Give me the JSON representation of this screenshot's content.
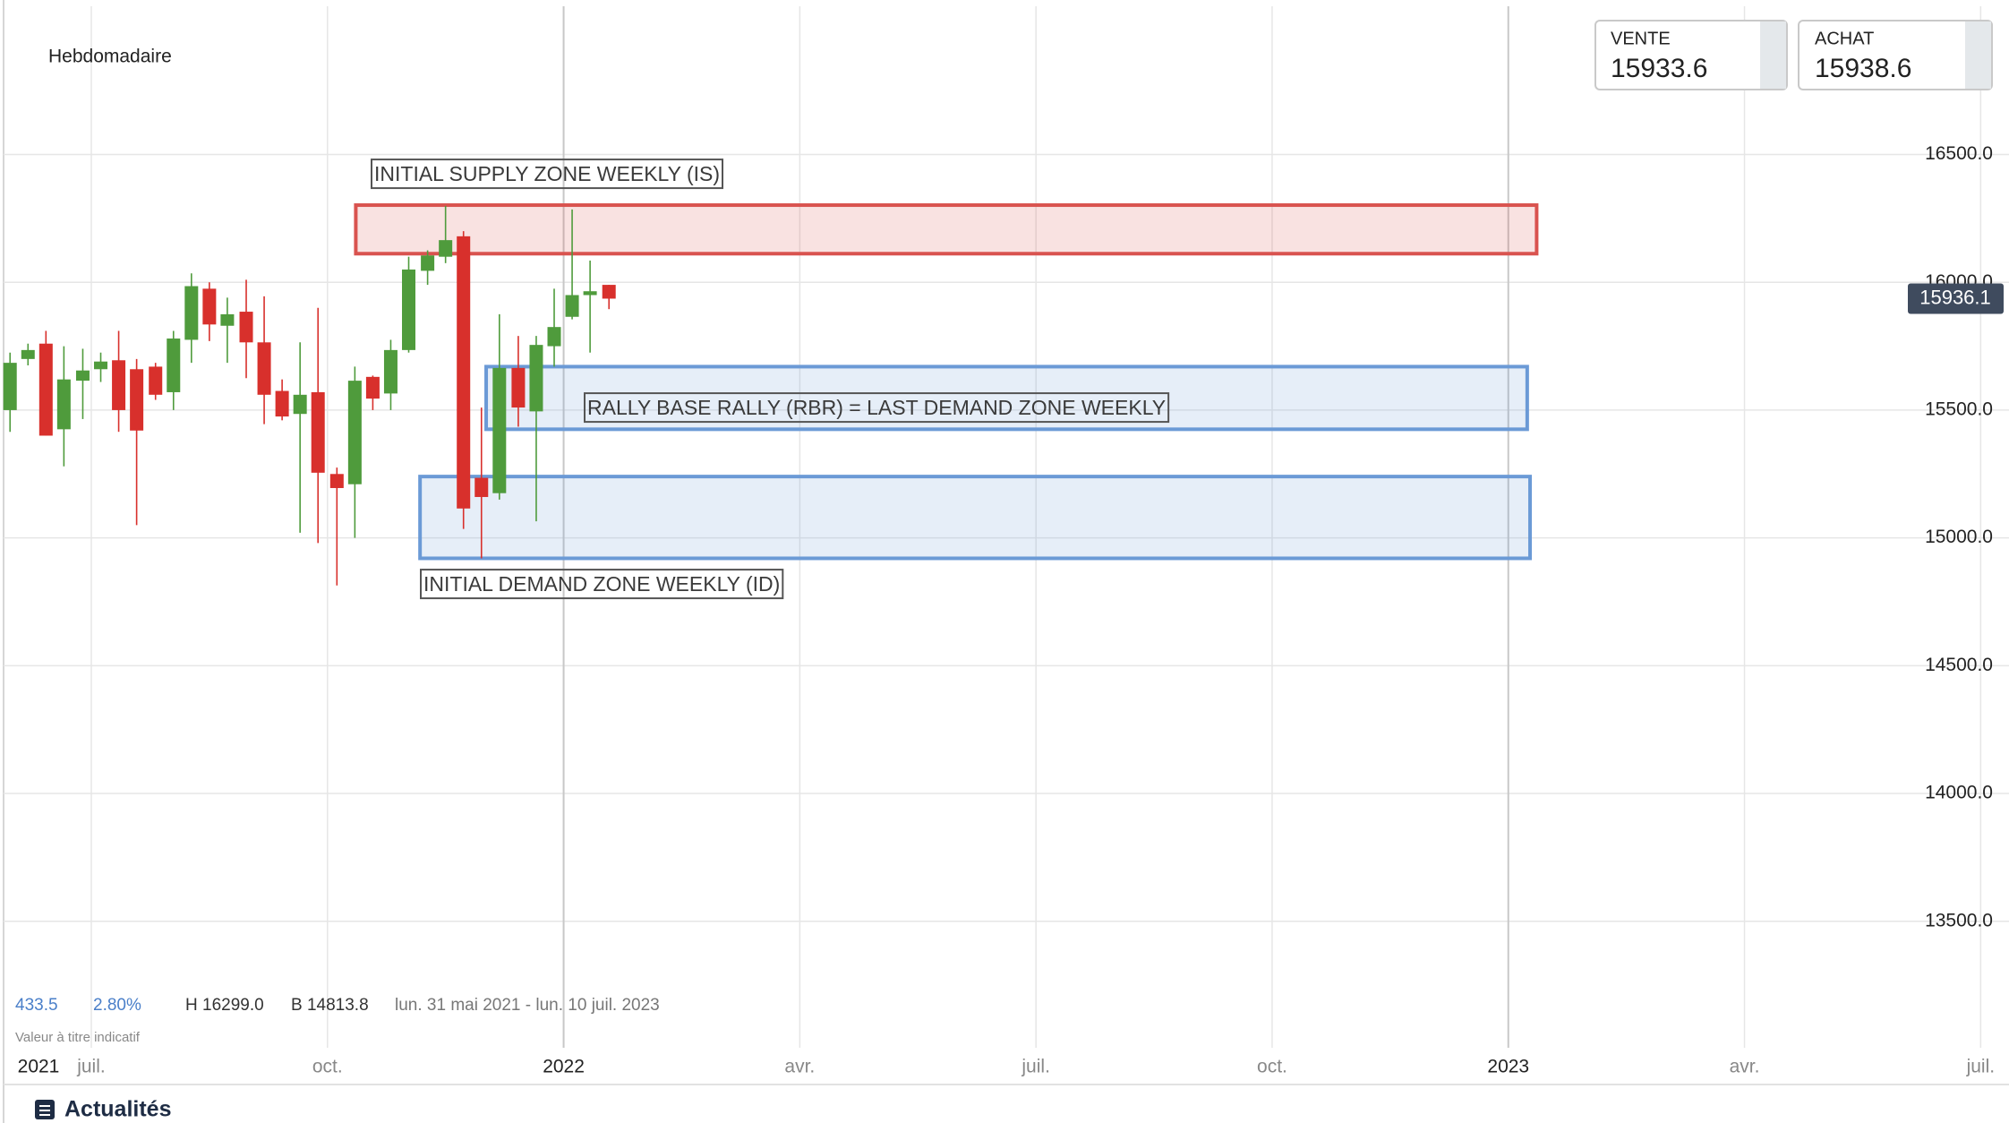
{
  "chart_data": {
    "type": "candlestick",
    "period_label": "Hebdomadaire",
    "year_label": "2021",
    "x": [
      2021.414,
      2021.433,
      2021.452,
      2021.471,
      2021.491,
      2021.51,
      2021.529,
      2021.548,
      2021.568,
      2021.587,
      2021.606,
      2021.625,
      2021.644,
      2021.664,
      2021.683,
      2021.702,
      2021.721,
      2021.74,
      2021.76,
      2021.779,
      2021.798,
      2021.817,
      2021.836,
      2021.856,
      2021.875,
      2021.894,
      2021.913,
      2021.932,
      2021.952,
      2021.971,
      2021.99,
      2022.009,
      2022.028,
      2022.048
    ],
    "open": [
      15500,
      15700,
      15760,
      15425,
      15615,
      15660,
      15695,
      15660,
      15670,
      15570,
      15775,
      15975,
      15830,
      15885,
      15765,
      15575,
      15485,
      15570,
      15250,
      15210,
      15630,
      15565,
      15735,
      16045,
      16100,
      16180,
      15235,
      15175,
      15665,
      15495,
      15750,
      15865,
      15950,
      15990
    ],
    "high": [
      15725,
      15760,
      15810,
      15750,
      15740,
      15725,
      15810,
      15700,
      15685,
      15810,
      16035,
      16000,
      15940,
      16010,
      15945,
      15620,
      15765,
      15900,
      15275,
      15670,
      15635,
      15775,
      16100,
      16125,
      16299,
      16200,
      15510,
      15875,
      15790,
      15790,
      15975,
      16285,
      16085,
      15990
    ],
    "low": [
      15415,
      15675,
      15400,
      15280,
      15465,
      15610,
      15415,
      15050,
      15540,
      15500,
      15685,
      15770,
      15685,
      15625,
      15445,
      15460,
      15020,
      14980,
      14814,
      15000,
      15500,
      15500,
      15725,
      15990,
      16075,
      15035,
      14920,
      15150,
      15435,
      15065,
      15670,
      15855,
      15725,
      15895
    ],
    "close": [
      15685,
      15735,
      15400,
      15620,
      15655,
      15690,
      15500,
      15420,
      15560,
      15780,
      15985,
      15835,
      15875,
      15765,
      15560,
      15475,
      15560,
      15255,
      15195,
      15615,
      15545,
      15735,
      16050,
      16105,
      16165,
      15115,
      15160,
      15665,
      15510,
      15755,
      15825,
      15950,
      15965,
      15936.1
    ],
    "up_color": "#4f9b3c",
    "down_color": "#d8302c",
    "xlim": [
      2021.41,
      2023.53
    ],
    "ylim": [
      12970,
      17080
    ],
    "xticks": [
      {
        "value": 2021.5,
        "label": "juil."
      },
      {
        "value": 2021.75,
        "label": "oct."
      },
      {
        "value": 2022,
        "label": "2022"
      },
      {
        "value": 2022.25,
        "label": "avr."
      },
      {
        "value": 2022.5,
        "label": "juil."
      },
      {
        "value": 2022.75,
        "label": "oct."
      },
      {
        "value": 2023,
        "label": "2023"
      },
      {
        "value": 2023.25,
        "label": "avr."
      },
      {
        "value": 2023.5,
        "label": "juil."
      }
    ],
    "yticks": [
      {
        "value": 13500,
        "label": "13500.0"
      },
      {
        "value": 14000,
        "label": "14000.0"
      },
      {
        "value": 14500,
        "label": "14500.0"
      },
      {
        "value": 15000,
        "label": "15000.0"
      },
      {
        "value": 15500,
        "label": "15500.0"
      },
      {
        "value": 16000,
        "label": "16000.0"
      },
      {
        "value": 16500,
        "label": "16500.0"
      }
    ],
    "grid": true,
    "last_price": 15936.1,
    "zones": [
      {
        "label": "INITIAL SUPPLY ZONE WEEKLY (IS)",
        "color": "#d9534f",
        "y_range": [
          16112,
          16302
        ],
        "x_range": [
          2021.78,
          2023.03
        ]
      },
      {
        "label": "RALLY BASE RALLY (RBR) = LAST DEMAND ZONE WEEKLY",
        "color": "#6b9ad6",
        "y_range": [
          15425,
          15670
        ],
        "x_range": [
          2021.918,
          2023.02
        ]
      },
      {
        "label": "INITIAL DEMAND ZONE WEEKLY (ID)",
        "color": "#6b9ad6",
        "y_range": [
          14920,
          15240
        ],
        "x_range": [
          2021.848,
          2023.023
        ]
      }
    ],
    "stats": {
      "change": "433.5",
      "change_pct": "2.80%",
      "high": "H 16299.0",
      "low": "B 14813.8",
      "range": "lun. 31 mai 2021 - lun. 10 juil. 2023",
      "note": "Valeur à titre indicatif"
    }
  },
  "quotes": {
    "sell_label": "VENTE",
    "sell": 15933.6,
    "buy_label": "ACHAT",
    "buy": 15938.6
  },
  "footer": {
    "news": "Actualités"
  }
}
